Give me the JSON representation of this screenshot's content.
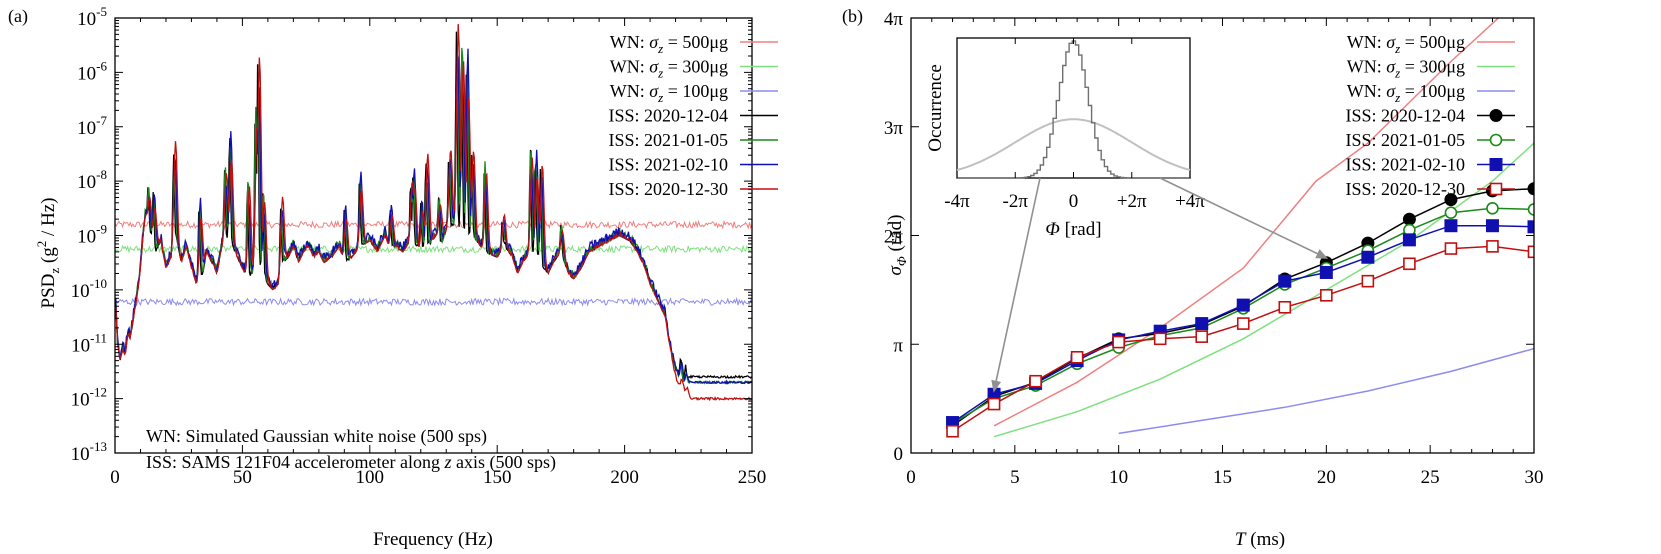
{
  "panels": {
    "a_label": "(a)",
    "b_label": "(b)"
  },
  "colors": {
    "wn500": "#f08080",
    "wn300": "#7ee07e",
    "wn100": "#8c8cf0",
    "iss1": "#000000",
    "iss2": "#1a8a1a",
    "iss3": "#1010b0",
    "iss4": "#c01010",
    "inset_dark": "#707070",
    "inset_light": "#c0c0c0",
    "arrow": "#909090"
  },
  "chart_data": [
    {
      "type": "line",
      "panel": "(a)",
      "xlabel": "Frequency (Hz)",
      "ylabel_main": "PSD",
      "ylabel_sub": "z",
      "ylabel_rest": " (g",
      "ylabel_sup": "2",
      "ylabel_end": " / Hz)",
      "xlim": [
        0,
        250
      ],
      "ylim_log10": [
        -13,
        -5
      ],
      "y_log": true,
      "xticks": [
        {
          "v": 0,
          "label": "0"
        },
        {
          "v": 50,
          "label": "50"
        },
        {
          "v": 100,
          "label": "100"
        },
        {
          "v": 150,
          "label": "150"
        },
        {
          "v": 200,
          "label": "200"
        },
        {
          "v": 250,
          "label": "250"
        }
      ],
      "yticks": [
        {
          "e": -5,
          "base": "10",
          "exp": "-5"
        },
        {
          "e": -6,
          "base": "10",
          "exp": "-6"
        },
        {
          "e": -7,
          "base": "10",
          "exp": "-7"
        },
        {
          "e": -8,
          "base": "10",
          "exp": "-8"
        },
        {
          "e": -9,
          "base": "10",
          "exp": "-9"
        },
        {
          "e": -10,
          "base": "10",
          "exp": "-10"
        },
        {
          "e": -11,
          "base": "10",
          "exp": "-11"
        },
        {
          "e": -12,
          "base": "10",
          "exp": "-12"
        },
        {
          "e": -13,
          "base": "10",
          "exp": "-13"
        }
      ],
      "legend_position": "top-right",
      "legend": [
        {
          "pre": "WN: ",
          "sym": "σ",
          "sub": "z",
          "post": " = 500μg",
          "color": "#f08080"
        },
        {
          "pre": "WN: ",
          "sym": "σ",
          "sub": "z",
          "post": " = 300μg",
          "color": "#7ee07e"
        },
        {
          "pre": "WN: ",
          "sym": "σ",
          "sub": "z",
          "post": " = 100μg",
          "color": "#8c8cf0"
        },
        {
          "pre": "ISS: 2020-12-04",
          "sym": "",
          "sub": "",
          "post": "",
          "color": "#000000"
        },
        {
          "pre": "ISS: 2021-01-05",
          "sym": "",
          "sub": "",
          "post": "",
          "color": "#1a8a1a"
        },
        {
          "pre": "ISS: 2021-02-10",
          "sym": "",
          "sub": "",
          "post": "",
          "color": "#1010b0"
        },
        {
          "pre": "ISS: 2020-12-30",
          "sym": "",
          "sub": "",
          "post": "",
          "color": "#c01010"
        }
      ],
      "annotations": {
        "line1": "WN: Simulated Gaussian white noise (500 sps)",
        "line2_pre": "ISS: SAMS 121F04 accelerometer along ",
        "line2_italic": "z",
        "line2_post": " axis (500 sps)"
      },
      "wn_levels_log10": [
        -8.8,
        -9.25,
        -10.22
      ],
      "iss_baseline": [
        [
          0,
          -10.0
        ],
        [
          1,
          -11.0
        ],
        [
          2,
          -11.3
        ],
        [
          3,
          -11.1
        ],
        [
          4,
          -11.2
        ],
        [
          5,
          -10.8
        ],
        [
          6,
          -10.9
        ],
        [
          7,
          -10.6
        ],
        [
          8,
          -10.3
        ],
        [
          9,
          -10.0
        ],
        [
          10,
          -9.6
        ],
        [
          11,
          -9.0
        ],
        [
          12,
          -8.6
        ],
        [
          14,
          -9.0
        ],
        [
          16,
          -9.3
        ],
        [
          18,
          -9.1
        ],
        [
          20,
          -9.6
        ],
        [
          22,
          -9.4
        ],
        [
          24,
          -9.0
        ],
        [
          26,
          -9.5
        ],
        [
          28,
          -9.2
        ],
        [
          30,
          -9.6
        ],
        [
          32,
          -9.9
        ],
        [
          34,
          -9.8
        ],
        [
          36,
          -9.3
        ],
        [
          38,
          -9.5
        ],
        [
          40,
          -9.7
        ],
        [
          42,
          -9.2
        ],
        [
          45,
          -9.0
        ],
        [
          47,
          -9.3
        ],
        [
          50,
          -9.6
        ],
        [
          52,
          -9.8
        ],
        [
          54,
          -9.7
        ],
        [
          56,
          -9.5
        ],
        [
          58,
          -9.7
        ],
        [
          60,
          -9.9
        ],
        [
          62,
          -10.0
        ],
        [
          64,
          -9.9
        ],
        [
          66,
          -9.5
        ],
        [
          68,
          -9.4
        ],
        [
          70,
          -9.2
        ],
        [
          72,
          -9.5
        ],
        [
          74,
          -9.3
        ],
        [
          76,
          -9.2
        ],
        [
          78,
          -9.4
        ],
        [
          80,
          -9.3
        ],
        [
          82,
          -9.5
        ],
        [
          85,
          -9.4
        ],
        [
          88,
          -9.2
        ],
        [
          90,
          -9.5
        ],
        [
          93,
          -9.4
        ],
        [
          96,
          -9.2
        ],
        [
          100,
          -9.1
        ],
        [
          103,
          -9.3
        ],
        [
          106,
          -9.0
        ],
        [
          108,
          -9.3
        ],
        [
          110,
          -9.2
        ],
        [
          113,
          -9.3
        ],
        [
          116,
          -9.1
        ],
        [
          120,
          -9.3
        ],
        [
          123,
          -9.2
        ],
        [
          126,
          -9.0
        ],
        [
          128,
          -9.2
        ],
        [
          130,
          -8.9
        ],
        [
          133,
          -8.8
        ],
        [
          138,
          -9.0
        ],
        [
          142,
          -9.1
        ],
        [
          145,
          -9.3
        ],
        [
          150,
          -9.4
        ],
        [
          153,
          -9.2
        ],
        [
          156,
          -9.4
        ],
        [
          158,
          -9.7
        ],
        [
          160,
          -9.5
        ],
        [
          163,
          -9.3
        ],
        [
          166,
          -9.4
        ],
        [
          168,
          -9.6
        ],
        [
          170,
          -9.7
        ],
        [
          172,
          -9.5
        ],
        [
          175,
          -9.3
        ],
        [
          178,
          -9.7
        ],
        [
          180,
          -9.8
        ],
        [
          183,
          -9.6
        ],
        [
          186,
          -9.3
        ],
        [
          190,
          -9.2
        ],
        [
          194,
          -9.1
        ],
        [
          198,
          -9.0
        ],
        [
          202,
          -9.1
        ],
        [
          205,
          -9.3
        ],
        [
          208,
          -9.6
        ],
        [
          210,
          -9.9
        ],
        [
          213,
          -10.2
        ],
        [
          216,
          -10.5
        ],
        [
          218,
          -10.9
        ],
        [
          220,
          -11.3
        ],
        [
          222,
          -11.6
        ],
        [
          224,
          -11.8
        ],
        [
          226,
          -11.9
        ],
        [
          230,
          -12.0
        ],
        [
          240,
          -12.05
        ],
        [
          250,
          -12.1
        ]
      ],
      "iss_peaks": [
        [
          13,
          -8.1
        ],
        [
          15,
          -8.2
        ],
        [
          23,
          -7.5
        ],
        [
          33,
          -8.4
        ],
        [
          43,
          -7.8
        ],
        [
          45,
          -7.1
        ],
        [
          52,
          -8.0
        ],
        [
          55,
          -6.8
        ],
        [
          56,
          -5.8
        ],
        [
          58,
          -8.2
        ],
        [
          65,
          -8.5
        ],
        [
          90,
          -8.5
        ],
        [
          96,
          -7.9
        ],
        [
          108,
          -8.5
        ],
        [
          116,
          -8.0
        ],
        [
          117,
          -7.8
        ],
        [
          120,
          -8.4
        ],
        [
          122,
          -7.6
        ],
        [
          127,
          -8.3
        ],
        [
          131,
          -7.5
        ],
        [
          134,
          -5.25
        ],
        [
          136,
          -5.5
        ],
        [
          138,
          -5.7
        ],
        [
          140,
          -7.5
        ],
        [
          145,
          -7.7
        ],
        [
          152,
          -8.7
        ],
        [
          163,
          -7.4
        ],
        [
          165,
          -7.5
        ],
        [
          167,
          -7.7
        ],
        [
          175,
          -8.8
        ],
        [
          222,
          -10.7
        ],
        [
          224,
          -10.6
        ]
      ],
      "iss_tails_log10": [
        -11.6,
        -11.7,
        -11.7,
        -12.0
      ]
    },
    {
      "type": "line",
      "panel": "(b)",
      "xlabel_sym": "T",
      "xlabel_post": " (ms)",
      "ylabel_sym": "σ",
      "ylabel_sub": "Φ",
      "ylabel_post": " (rad)",
      "xlim": [
        0,
        30
      ],
      "ylim_pi": [
        0,
        4
      ],
      "xticks": [
        {
          "v": 0,
          "label": "0"
        },
        {
          "v": 5,
          "label": "5"
        },
        {
          "v": 10,
          "label": "10"
        },
        {
          "v": 15,
          "label": "15"
        },
        {
          "v": 20,
          "label": "20"
        },
        {
          "v": 25,
          "label": "25"
        },
        {
          "v": 30,
          "label": "30"
        }
      ],
      "yticks": [
        {
          "v": 0,
          "label": "0"
        },
        {
          "v": 1,
          "label": "π"
        },
        {
          "v": 2,
          "label": "2π"
        },
        {
          "v": 3,
          "label": "3π"
        },
        {
          "v": 4,
          "label": "4π"
        }
      ],
      "legend_position": "top-right",
      "legend": [
        {
          "pre": "WN: ",
          "sym": "σ",
          "sub": "z",
          "post": " = 500μg",
          "color": "#f08080",
          "marker": "none"
        },
        {
          "pre": "WN: ",
          "sym": "σ",
          "sub": "z",
          "post": " = 300μg",
          "color": "#7ee07e",
          "marker": "none"
        },
        {
          "pre": "WN: ",
          "sym": "σ",
          "sub": "z",
          "post": " = 100μg",
          "color": "#8c8cf0",
          "marker": "none"
        },
        {
          "pre": "ISS: 2020-12-04",
          "sym": "",
          "sub": "",
          "post": "",
          "color": "#000000",
          "marker": "filled-circle"
        },
        {
          "pre": "ISS: 2021-01-05",
          "sym": "",
          "sub": "",
          "post": "",
          "color": "#1a8a1a",
          "marker": "open-circle"
        },
        {
          "pre": "ISS: 2021-02-10",
          "sym": "",
          "sub": "",
          "post": "",
          "color": "#1010b0",
          "marker": "filled-square"
        },
        {
          "pre": "ISS: 2020-12-30",
          "sym": "",
          "sub": "",
          "post": "",
          "color": "#c01010",
          "marker": "open-square"
        }
      ],
      "wn_series": [
        {
          "x": [
            4,
            8,
            12,
            16,
            19.5,
            22,
            26,
            30
          ],
          "y": [
            0.25,
            0.65,
            1.15,
            1.7,
            2.5,
            2.85,
            3.6,
            4.3
          ]
        },
        {
          "x": [
            4,
            8,
            12,
            16,
            20,
            24,
            28,
            30
          ],
          "y": [
            0.15,
            0.38,
            0.68,
            1.05,
            1.5,
            1.95,
            2.5,
            2.85
          ]
        },
        {
          "x": [
            10,
            14,
            18,
            22,
            26,
            30
          ],
          "y": [
            0.18,
            0.3,
            0.42,
            0.57,
            0.75,
            0.96
          ]
        }
      ],
      "series": [
        {
          "name": "ISS: 2020-12-04",
          "x": [
            2,
            4,
            6,
            8,
            10,
            12,
            14,
            16,
            18,
            20,
            22,
            24,
            26,
            28,
            30
          ],
          "y": [
            0.25,
            0.52,
            0.65,
            0.87,
            1.05,
            1.1,
            1.18,
            1.35,
            1.6,
            1.75,
            1.93,
            2.15,
            2.33,
            2.41,
            2.43
          ]
        },
        {
          "name": "ISS: 2021-01-05",
          "x": [
            2,
            4,
            6,
            8,
            10,
            12,
            14,
            16,
            18,
            20,
            22,
            24,
            26,
            28,
            30
          ],
          "y": [
            0.27,
            0.5,
            0.62,
            0.82,
            0.97,
            1.08,
            1.15,
            1.33,
            1.55,
            1.7,
            1.86,
            2.05,
            2.21,
            2.25,
            2.24
          ]
        },
        {
          "name": "ISS: 2021-02-10",
          "x": [
            2,
            4,
            6,
            8,
            10,
            12,
            14,
            16,
            18,
            20,
            22,
            24,
            26,
            28,
            30
          ],
          "y": [
            0.28,
            0.54,
            0.64,
            0.85,
            1.04,
            1.12,
            1.19,
            1.36,
            1.58,
            1.66,
            1.8,
            1.96,
            2.09,
            2.09,
            2.08
          ]
        },
        {
          "name": "ISS: 2020-12-30",
          "x": [
            2,
            4,
            6,
            8,
            10,
            12,
            14,
            16,
            18,
            20,
            22,
            24,
            26,
            28,
            30
          ],
          "y": [
            0.2,
            0.45,
            0.66,
            0.88,
            1.02,
            1.05,
            1.07,
            1.19,
            1.34,
            1.45,
            1.58,
            1.74,
            1.88,
            1.9,
            1.85
          ]
        }
      ],
      "inset": {
        "ylabel": "Occurrence",
        "xlabel_sym": "Φ",
        "xlabel_post": " [rad]",
        "xlim_pi": [
          -4,
          4
        ],
        "xticks": [
          {
            "v": -4,
            "label": "-4π"
          },
          {
            "v": -2,
            "label": "-2π"
          },
          {
            "v": 0,
            "label": "0"
          },
          {
            "v": 2,
            "label": "+2π"
          },
          {
            "v": 4,
            "label": "+4π"
          }
        ],
        "narrow_sigma_pi": 0.5,
        "wide_sigma_pi": 2.0,
        "narrow_peak_fraction": 0.98,
        "wide_peak_fraction": 0.42,
        "arrow_targets": [
          {
            "x": 4,
            "y": 0.5
          },
          {
            "x": 20,
            "y": 1.72
          }
        ]
      }
    }
  ]
}
